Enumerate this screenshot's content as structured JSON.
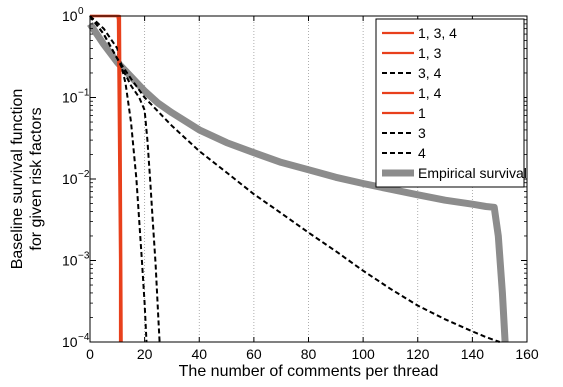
{
  "chart_data": {
    "type": "line",
    "title": "",
    "xlabel": "The number of comments per thread",
    "ylabel": [
      "Baseline survival function",
      "for given risk factors"
    ],
    "xlim": [
      0,
      160
    ],
    "ylim": [
      0.0001,
      1
    ],
    "yscale": "log",
    "x_ticks": [
      "0",
      "20",
      "40",
      "60",
      "80",
      "100",
      "120",
      "140",
      "160"
    ],
    "y_ticks": [
      {
        "base": "10",
        "exp": "0"
      },
      {
        "base": "10",
        "exp": "−1"
      },
      {
        "base": "10",
        "exp": "−2"
      },
      {
        "base": "10",
        "exp": "−3"
      },
      {
        "base": "10",
        "exp": "−4"
      }
    ],
    "x_grid": "dotted vertical",
    "legend_position": "top-right",
    "series": [
      {
        "name": "1, 3, 4",
        "color": "#e8401c",
        "style": "solid",
        "x": [
          0,
          10,
          10.2,
          11,
          11
        ],
        "y": [
          1,
          1,
          0.9,
          0.001,
          0.0001
        ]
      },
      {
        "name": "1, 3",
        "color": "#e8401c",
        "style": "solid",
        "x": [
          0,
          11,
          11.3,
          11.6
        ],
        "y": [
          1,
          1,
          0.01,
          0.0001
        ]
      },
      {
        "name": "3, 4",
        "color": "#000000",
        "style": "dashed",
        "x": [
          0,
          5,
          10,
          13,
          15,
          17,
          19,
          20,
          20.7
        ],
        "y": [
          1,
          0.7,
          0.4,
          0.15,
          0.05,
          0.01,
          0.001,
          0.0003,
          0.0001
        ]
      },
      {
        "name": "1, 4",
        "color": "#e8401c",
        "style": "solid",
        "x": [
          0,
          10.5,
          11,
          11.2
        ],
        "y": [
          1,
          1,
          0.01,
          0.0001
        ]
      },
      {
        "name": "1",
        "color": "#e8401c",
        "style": "solid",
        "x": [
          0,
          10.8,
          11.1,
          11.3
        ],
        "y": [
          1,
          1,
          0.001,
          0.0001
        ]
      },
      {
        "name": "3",
        "color": "#000000",
        "style": "dashed",
        "x": [
          0,
          5,
          10,
          15,
          18,
          20,
          21,
          22,
          23,
          24,
          25,
          25.5
        ],
        "y": [
          1,
          0.6,
          0.3,
          0.14,
          0.1,
          0.07,
          0.03,
          0.01,
          0.003,
          0.0009,
          0.0002,
          0.0001
        ]
      },
      {
        "name": "4",
        "color": "#000000",
        "style": "dashed",
        "x": [
          0,
          5,
          10,
          15,
          20,
          30,
          40,
          50,
          60,
          70,
          80,
          90,
          100,
          110,
          120,
          130,
          140,
          145,
          150
        ],
        "y": [
          1,
          0.6,
          0.3,
          0.17,
          0.1,
          0.045,
          0.022,
          0.012,
          0.0065,
          0.0038,
          0.0022,
          0.0013,
          0.00075,
          0.00045,
          0.00028,
          0.00019,
          0.000135,
          0.000115,
          0.0001
        ]
      },
      {
        "name": "Empirical survival",
        "color": "#8c8c8c",
        "style": "solid-thick",
        "x": [
          0,
          5,
          10,
          15,
          20,
          25,
          30,
          40,
          50,
          60,
          70,
          80,
          90,
          100,
          110,
          120,
          130,
          140,
          145,
          148,
          149.5,
          151,
          152
        ],
        "y": [
          0.8,
          0.45,
          0.27,
          0.18,
          0.12,
          0.085,
          0.065,
          0.04,
          0.028,
          0.021,
          0.016,
          0.013,
          0.0105,
          0.0088,
          0.0075,
          0.0064,
          0.0055,
          0.0049,
          0.0046,
          0.0045,
          0.002,
          0.0004,
          0.0001
        ]
      }
    ]
  }
}
